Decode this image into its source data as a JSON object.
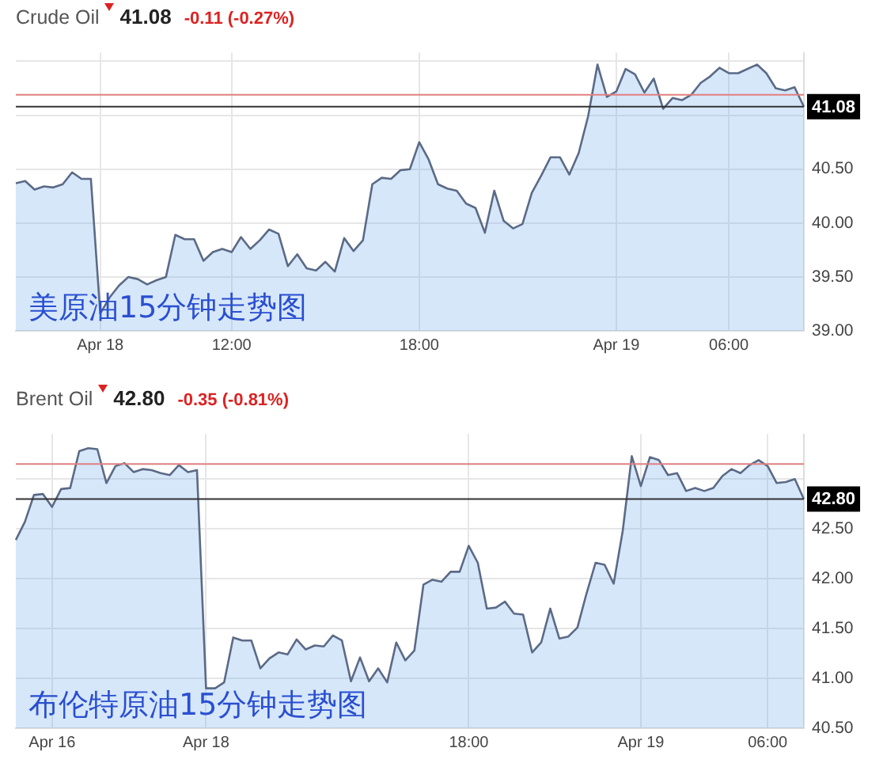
{
  "chart_data": [
    {
      "type": "area",
      "title": "Crude Oil",
      "subtitle": "41.08",
      "annotations": [
        "-0.11 (-0.27%)",
        "美原油15分钟走势图"
      ],
      "categories": [
        null,
        null,
        null,
        null,
        null,
        null,
        null,
        null,
        null,
        "Apr 18",
        null,
        null,
        null,
        null,
        null,
        null,
        null,
        null,
        null,
        null,
        null,
        null,
        null,
        "12:00",
        null,
        null,
        null,
        null,
        null,
        null,
        null,
        null,
        null,
        null,
        null,
        null,
        null,
        null,
        null,
        null,
        null,
        null,
        null,
        "18:00",
        null,
        null,
        null,
        null,
        null,
        null,
        null,
        null,
        null,
        null,
        null,
        null,
        null,
        null,
        null,
        null,
        null,
        null,
        null,
        null,
        "Apr 19",
        null,
        null,
        null,
        null,
        null,
        null,
        null,
        null,
        null,
        null,
        null,
        "06:00",
        null,
        null,
        null,
        null,
        null,
        null,
        null,
        null
      ],
      "series": [
        {
          "color": "#5b6a86",
          "values": [
            40.37,
            40.39,
            40.31,
            40.34,
            40.33,
            40.36,
            40.47,
            40.41,
            40.41,
            39.16,
            39.31,
            39.42,
            39.5,
            39.48,
            39.43,
            39.47,
            39.5,
            39.89,
            39.85,
            39.85,
            39.65,
            39.73,
            39.76,
            39.73,
            39.87,
            39.76,
            39.84,
            39.94,
            39.9,
            39.6,
            39.71,
            39.58,
            39.56,
            39.64,
            39.55,
            39.86,
            39.74,
            39.84,
            40.36,
            40.42,
            40.41,
            40.49,
            40.5,
            40.75,
            40.59,
            40.36,
            40.32,
            40.3,
            40.18,
            40.14,
            39.91,
            40.3,
            40.02,
            39.95,
            39.99,
            40.28,
            40.44,
            40.61,
            40.61,
            40.45,
            40.65,
            40.99,
            41.47,
            41.17,
            41.22,
            41.43,
            41.38,
            41.21,
            41.34,
            41.06,
            41.16,
            41.14,
            41.19,
            41.3,
            41.36,
            41.44,
            41.39,
            41.39,
            41.43,
            41.47,
            41.39,
            41.25,
            41.23,
            41.26,
            41.08
          ]
        }
      ],
      "ylim": [
        39,
        41.58
      ],
      "yticks": [
        {
          "value": 39,
          "label": "39.00"
        },
        {
          "value": 39.5,
          "label": "39.50"
        },
        {
          "value": 40,
          "label": "40.00"
        },
        {
          "value": 40.5,
          "label": "40.50"
        },
        {
          "value": 41,
          "label": null
        },
        {
          "value": 41.5,
          "label": null
        }
      ],
      "ref_lines": [
        {
          "axis": "y",
          "value": 41.19,
          "color": "#e08080"
        },
        {
          "axis": "y",
          "value": 41.08,
          "label": "41.08",
          "color": "#333333"
        }
      ],
      "grid": true,
      "legend": false,
      "marker": "none"
    },
    {
      "type": "area",
      "title": "Brent Oil",
      "subtitle": "42.80",
      "annotations": [
        "-0.35 (-0.81%)",
        "布伦特原油15分钟走势图"
      ],
      "categories": [
        null,
        null,
        null,
        null,
        "Apr 16",
        null,
        null,
        null,
        null,
        null,
        null,
        null,
        null,
        null,
        null,
        null,
        null,
        null,
        null,
        null,
        null,
        "Apr 18",
        null,
        null,
        null,
        null,
        null,
        null,
        null,
        null,
        null,
        null,
        null,
        null,
        null,
        null,
        null,
        null,
        null,
        null,
        null,
        null,
        null,
        null,
        null,
        null,
        null,
        null,
        null,
        null,
        "18:00",
        null,
        null,
        null,
        null,
        null,
        null,
        null,
        null,
        null,
        null,
        null,
        null,
        null,
        null,
        null,
        null,
        null,
        null,
        "Apr 19",
        null,
        null,
        null,
        null,
        null,
        null,
        null,
        null,
        null,
        null,
        null,
        null,
        null,
        "06:00",
        null,
        null,
        null,
        null
      ],
      "series": [
        {
          "color": "#5b6a86",
          "values": [
            42.39,
            42.57,
            42.84,
            42.85,
            42.72,
            42.9,
            42.91,
            43.28,
            43.31,
            43.3,
            42.96,
            43.13,
            43.16,
            43.07,
            43.1,
            43.09,
            43.06,
            43.04,
            43.14,
            43.07,
            43.09,
            40.9,
            40.9,
            40.96,
            41.41,
            41.38,
            41.38,
            41.1,
            41.2,
            41.26,
            41.24,
            41.39,
            41.29,
            41.33,
            41.32,
            41.43,
            41.38,
            40.97,
            41.21,
            40.97,
            41.1,
            40.96,
            41.36,
            41.18,
            41.28,
            41.94,
            41.99,
            41.97,
            42.07,
            42.07,
            42.33,
            42.16,
            41.7,
            41.71,
            41.77,
            41.65,
            41.64,
            41.26,
            41.36,
            41.7,
            41.4,
            41.42,
            41.51,
            41.85,
            42.16,
            42.14,
            41.95,
            42.48,
            43.23,
            42.93,
            43.22,
            43.19,
            43.04,
            43.06,
            42.88,
            42.91,
            42.88,
            42.91,
            43.03,
            43.1,
            43.06,
            43.14,
            43.19,
            43.13,
            42.96,
            42.97,
            43.0,
            42.8
          ]
        }
      ],
      "ylim": [
        40.5,
        43.45
      ],
      "yticks": [
        {
          "value": 40.5,
          "label": "40.50"
        },
        {
          "value": 41,
          "label": "41.00"
        },
        {
          "value": 41.5,
          "label": "41.50"
        },
        {
          "value": 42,
          "label": "42.00"
        },
        {
          "value": 42.5,
          "label": "42.50"
        },
        {
          "value": 43,
          "label": null
        }
      ],
      "ref_lines": [
        {
          "axis": "y",
          "value": 43.15,
          "color": "#e08080"
        },
        {
          "axis": "y",
          "value": 42.8,
          "label": "42.80",
          "color": "#333333"
        }
      ],
      "grid": true,
      "legend": false,
      "marker": "none"
    }
  ]
}
